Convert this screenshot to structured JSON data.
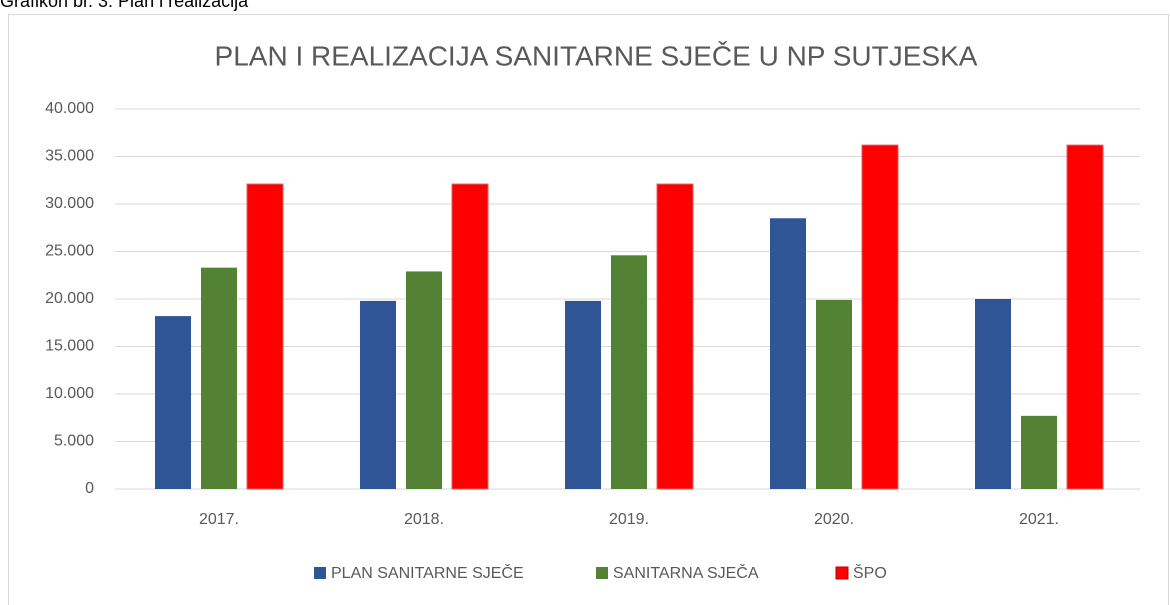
{
  "caption": "Grafikon br. 3: Plan i realizacija",
  "chart_data": {
    "type": "bar",
    "title": "PLAN I REALIZACIJA SANITARNE SJEČE U NP SUTJESKA",
    "categories": [
      "2017.",
      "2018.",
      "2019.",
      "2020.",
      "2021."
    ],
    "series": [
      {
        "name": "PLAN SANITARNE SJEČE",
        "color": "#2f5597",
        "values": [
          18200,
          19800,
          19800,
          28500,
          20000
        ]
      },
      {
        "name": "SANITARNA SJEČA",
        "color": "#548235",
        "values": [
          23300,
          22900,
          24600,
          19900,
          7700
        ]
      },
      {
        "name": "ŠPO",
        "color": "#ff0000",
        "values": [
          32100,
          32100,
          32100,
          36200,
          36200
        ]
      }
    ],
    "ylim": [
      0,
      40000
    ],
    "yticks": [
      0,
      {
        "value": 5000,
        "label": "5.000"
      },
      {
        "value": 10000,
        "label": "10.000"
      },
      {
        "value": 15000,
        "label": "15.000"
      },
      {
        "value": 20000,
        "label": "20.000"
      },
      {
        "value": 25000,
        "label": "25.000"
      },
      {
        "value": 30000,
        "label": "30.000"
      },
      {
        "value": 35000,
        "label": "35.000"
      },
      {
        "value": 40000,
        "label": "40.000"
      }
    ],
    "grid": true,
    "legend": "bottom"
  }
}
